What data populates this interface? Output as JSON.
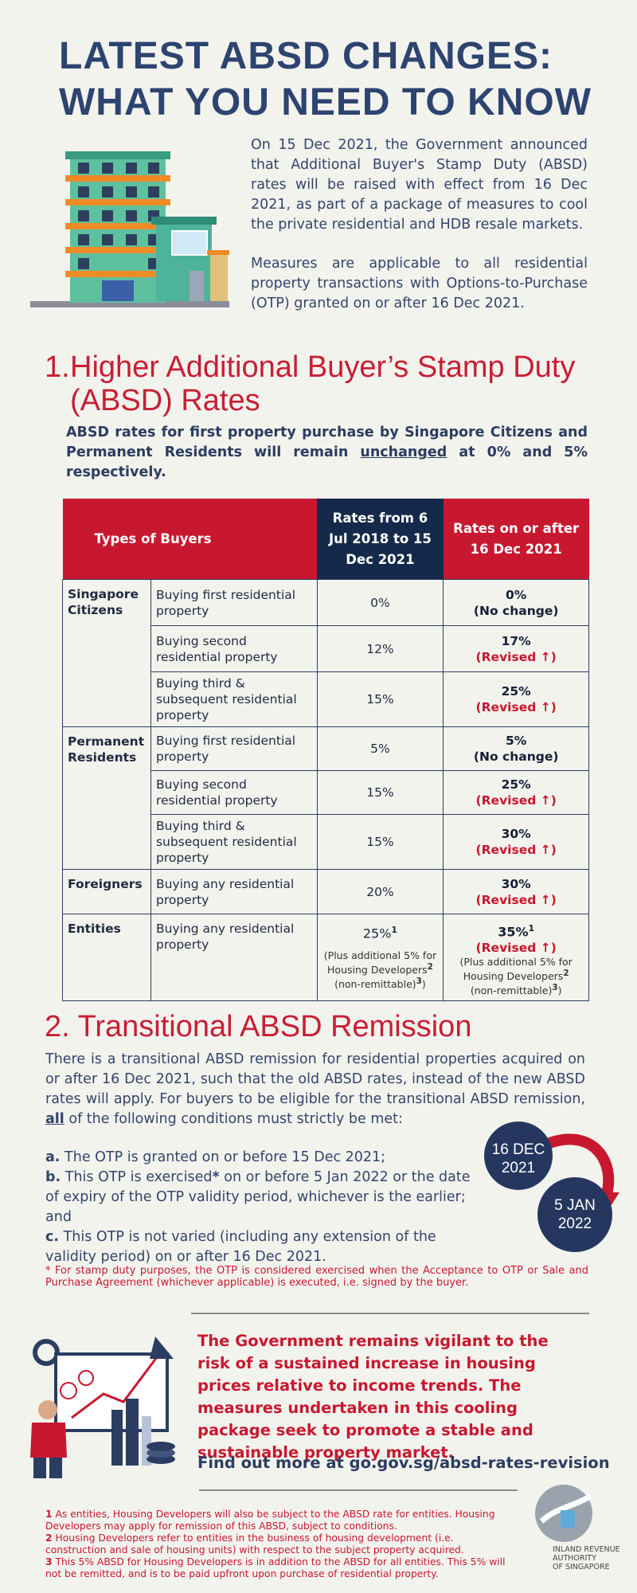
{
  "title": {
    "line1": "LATEST ABSD CHANGES:",
    "line2": "WHAT YOU NEED TO KNOW"
  },
  "intro": {
    "p1": "On 15 Dec 2021, the Government announced that Additional Buyer's Stamp Duty (ABSD) rates will be raised with effect from 16 Dec 2021, as part of a package of measures to cool the private residential and HDB resale markets.",
    "p2": "Measures are applicable to all residential property transactions with Options-to-Purchase (OTP) granted on or after 16 Dec 2021."
  },
  "section1": {
    "number": "1.",
    "title": "Higher Additional Buyer’s Stamp Duty (ABSD) Rates",
    "sub_pre": "ABSD rates for first property purchase by Singapore Citizens and Permanent Residents will remain ",
    "sub_underlined": "unchanged",
    "sub_post": " at 0% and 5% respectively."
  },
  "table": {
    "headers": {
      "buyers": "Types of Buyers",
      "old": "Rates from 6 Jul 2018 to 15 Dec 2021",
      "new": "Rates on or after 16 Dec 2021"
    },
    "groups": {
      "sc": "Singapore Citizens",
      "pr": "Permanent Residents",
      "foreigners": "Foreigners",
      "entities": "Entities"
    },
    "rows": [
      {
        "desc": "Buying first residential property",
        "old": "0%",
        "new": "0%",
        "status": "(No change)"
      },
      {
        "desc": "Buying second residential property",
        "old": "12%",
        "new": "17%",
        "status": "(Revised ↑)"
      },
      {
        "desc": "Buying third & subsequent residential property",
        "old": "15%",
        "new": "25%",
        "status": "(Revised ↑)"
      },
      {
        "desc": "Buying first residential property",
        "old": "5%",
        "new": "5%",
        "status": "(No change)"
      },
      {
        "desc": "Buying second residential property",
        "old": "15%",
        "new": "25%",
        "status": "(Revised ↑)"
      },
      {
        "desc": "Buying third & subsequent residential property",
        "old": "15%",
        "new": "30%",
        "status": "(Revised ↑)"
      },
      {
        "desc": "Buying any residential property",
        "old": "20%",
        "new": "30%",
        "status": "(Revised ↑)"
      },
      {
        "desc": "Buying any residential property",
        "old": "25%",
        "new": "35%",
        "status": "(Revised ↑)"
      }
    ],
    "entity_note_a": "(Plus additional 5% for Housing Developers",
    "entity_note_b": "(non-remittable)",
    "sup1": "1",
    "sup2": "2",
    "sup3": "3"
  },
  "section2": {
    "title": "2. Transitional ABSD Remission",
    "intro_pre": "There is a transitional ABSD remission for residential properties acquired on or after 16 Dec 2021, such that the old ABSD rates, instead of the new ABSD rates will apply. For buyers to be eligible for the transitional ABSD remission, ",
    "intro_all": "all",
    "intro_post": " of the following conditions must strictly be met:",
    "cond_a_label": "a.",
    "cond_a": " The OTP is granted on or before 15 Dec 2021;",
    "cond_b_label": "b.",
    "cond_b_pre": " This OTP is exercised",
    "cond_b_star": "*",
    "cond_b_post": " on or before 5 Jan 2022 or the date of expiry of the OTP validity period, whichever is the earlier; and",
    "cond_c_label": "c.",
    "cond_c": " This OTP is not varied (including any extension of the validity period) on or after 16 Dec 2021.",
    "date1_a": "16 DEC",
    "date1_b": "2021",
    "date2_a": "5 JAN",
    "date2_b": "2022",
    "star_note": "* For stamp duty purposes, the OTP is considered exercised when the Acceptance to OTP or Sale and Purchase Agreement (whichever applicable) is executed, i.e. signed by the buyer."
  },
  "closing": {
    "text": "The Government remains vigilant to the risk of a sustained increase in housing prices relative to income trends. The measures undertaken in this cooling package seek to promote a stable and sustainable property market.",
    "findout": "Find out more at go.gov.sg/absd-rates-revision"
  },
  "footnotes": {
    "n1": "1",
    "f1": " As entities, Housing Developers will also be subject to the ABSD rate for entities. Housing Developers may apply for remission of this ABSD, subject to conditions.",
    "n2": "2",
    "f2": " Housing Developers refer to entities in the business of housing development (i.e. construction and sale of housing units) with respect to the subject property acquired.",
    "n3": "3",
    "f3": " This 5% ABSD for Housing Developers is in addition to the ABSD for all entities. This 5% will not be remitted, and is to be paid upfront upon purchase of residential property."
  },
  "logo": {
    "line1": "INLAND REVENUE",
    "line2": "AUTHORITY",
    "line3": "OF SINGAPORE"
  },
  "colors": {
    "navy": "#2d4470",
    "red": "#c8182f",
    "background": "#f3f3ee"
  }
}
